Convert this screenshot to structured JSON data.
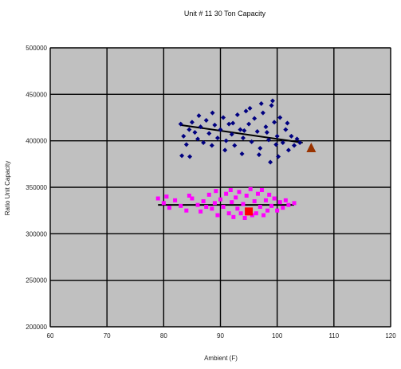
{
  "chart_data": {
    "type": "scatter",
    "title": "Unit # 11 30 Ton Capacity",
    "xlabel": "Ambient (F)",
    "ylabel": "Ratio Unit Capacity",
    "xlim": [
      60,
      120
    ],
    "ylim": [
      200000,
      500000
    ],
    "x_ticks": [
      60,
      70,
      80,
      90,
      100,
      110,
      120
    ],
    "y_ticks": [
      200000,
      250000,
      300000,
      350000,
      400000,
      450000,
      500000
    ],
    "x_tick_labels": [
      "60",
      "70",
      "80",
      "90",
      "100",
      "110",
      "120"
    ],
    "y_tick_labels": [
      "200000",
      "250000",
      "300000",
      "350000",
      "400000",
      "450000",
      "500000"
    ],
    "grid": true,
    "plot_background": "#c0c0c0",
    "series": [
      {
        "marker": "diamond",
        "color": "#000080",
        "points": [
          [
            83.0,
            418000
          ],
          [
            83.5,
            405000
          ],
          [
            84.0,
            396000
          ],
          [
            84.5,
            412000
          ],
          [
            83.2,
            384000
          ],
          [
            84.6,
            383000
          ],
          [
            85.0,
            420000
          ],
          [
            85.5,
            409000
          ],
          [
            86.0,
            402000
          ],
          [
            86.5,
            415000
          ],
          [
            87.0,
            398000
          ],
          [
            87.5,
            422000
          ],
          [
            88.0,
            408000
          ],
          [
            88.5,
            395000
          ],
          [
            89.0,
            417000
          ],
          [
            89.5,
            403000
          ],
          [
            90.0,
            412000
          ],
          [
            90.5,
            425000
          ],
          [
            91.0,
            400000
          ],
          [
            91.5,
            418000
          ],
          [
            92.0,
            407000
          ],
          [
            92.5,
            395000
          ],
          [
            93.0,
            428000
          ],
          [
            93.5,
            412000
          ],
          [
            94.0,
            403000
          ],
          [
            94.5,
            432000
          ],
          [
            95.0,
            418000
          ],
          [
            95.5,
            399000
          ],
          [
            96.0,
            424000
          ],
          [
            96.5,
            410000
          ],
          [
            97.0,
            392000
          ],
          [
            97.5,
            430000
          ],
          [
            98.0,
            415000
          ],
          [
            98.5,
            401000
          ],
          [
            99.0,
            438000
          ],
          [
            99.2,
            443000
          ],
          [
            99.5,
            420000
          ],
          [
            100.0,
            405000
          ],
          [
            100.5,
            425000
          ],
          [
            101.0,
            398000
          ],
          [
            101.5,
            412000
          ],
          [
            102.0,
            390000
          ],
          [
            102.5,
            405000
          ],
          [
            103.0,
            395000
          ],
          [
            103.5,
            402000
          ],
          [
            104.0,
            398000
          ],
          [
            98.8,
            377000
          ],
          [
            96.8,
            385000
          ],
          [
            93.8,
            386000
          ],
          [
            90.8,
            390000
          ],
          [
            95.2,
            435000
          ],
          [
            97.2,
            440000
          ],
          [
            100.2,
            383000
          ],
          [
            88.6,
            430000
          ],
          [
            86.2,
            427000
          ],
          [
            92.2,
            419000
          ],
          [
            94.2,
            411000
          ],
          [
            98.2,
            409000
          ],
          [
            101.8,
            419000
          ],
          [
            99.8,
            396000
          ]
        ]
      },
      {
        "marker": "square",
        "color": "#ff00ff",
        "points": [
          [
            79.0,
            338000
          ],
          [
            80.0,
            333000
          ],
          [
            81.0,
            328000
          ],
          [
            82.0,
            336000
          ],
          [
            83.0,
            330000
          ],
          [
            84.0,
            325000
          ],
          [
            85.0,
            338000
          ],
          [
            86.0,
            331000
          ],
          [
            86.5,
            324000
          ],
          [
            87.0,
            335000
          ],
          [
            87.5,
            329000
          ],
          [
            88.0,
            342000
          ],
          [
            88.5,
            327000
          ],
          [
            89.0,
            333000
          ],
          [
            89.5,
            320000
          ],
          [
            90.0,
            337000
          ],
          [
            90.5,
            329000
          ],
          [
            91.0,
            343000
          ],
          [
            91.5,
            322000
          ],
          [
            92.0,
            334000
          ],
          [
            92.3,
            318000
          ],
          [
            92.7,
            339000
          ],
          [
            93.0,
            327000
          ],
          [
            93.3,
            345000
          ],
          [
            93.6,
            322000
          ],
          [
            94.0,
            332000
          ],
          [
            94.3,
            317000
          ],
          [
            94.6,
            341000
          ],
          [
            95.0,
            326000
          ],
          [
            95.3,
            348000
          ],
          [
            95.6,
            320000
          ],
          [
            96.0,
            335000
          ],
          [
            96.3,
            322000
          ],
          [
            96.6,
            343000
          ],
          [
            97.0,
            329000
          ],
          [
            97.3,
            347000
          ],
          [
            97.6,
            320000
          ],
          [
            98.0,
            336000
          ],
          [
            98.3,
            325000
          ],
          [
            98.6,
            342000
          ],
          [
            99.0,
            330000
          ],
          [
            99.5,
            338000
          ],
          [
            100.0,
            325000
          ],
          [
            100.5,
            334000
          ],
          [
            101.0,
            328000
          ],
          [
            101.5,
            336000
          ],
          [
            102.0,
            331000
          ],
          [
            103.0,
            333000
          ],
          [
            80.5,
            340000
          ],
          [
            84.5,
            341000
          ],
          [
            89.2,
            346000
          ],
          [
            91.8,
            347000
          ]
        ]
      },
      {
        "marker": "square-large",
        "color": "#ff0000",
        "points": [
          [
            95.0,
            324000
          ]
        ]
      },
      {
        "marker": "triangle",
        "color": "#993300",
        "points": [
          [
            106.0,
            392000
          ]
        ]
      }
    ],
    "trendlines": [
      {
        "color": "#000000",
        "from": [
          83,
          417000
        ],
        "to": [
          104.5,
          398000
        ]
      },
      {
        "color": "#000000",
        "from": [
          79,
          331000
        ],
        "to": [
          103,
          331000
        ]
      }
    ]
  }
}
